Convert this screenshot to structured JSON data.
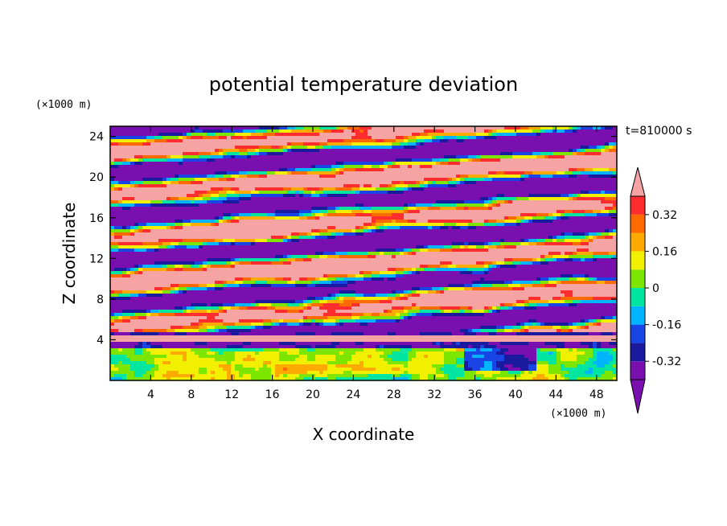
{
  "chart_data": {
    "type": "heatmap",
    "title": "potential temperature deviation",
    "xlabel": "X coordinate",
    "ylabel": "Z coordinate",
    "x_unit": "(×1000 m)",
    "y_unit": "(×1000 m)",
    "time_label": "t=810000 s",
    "xlim": [
      0,
      50
    ],
    "ylim": [
      0,
      25
    ],
    "x_ticks": [
      "4",
      "8",
      "12",
      "16",
      "20",
      "24",
      "28",
      "32",
      "36",
      "40",
      "44",
      "48"
    ],
    "x_tick_values": [
      4,
      8,
      12,
      16,
      20,
      24,
      28,
      32,
      36,
      40,
      44,
      48
    ],
    "y_ticks": [
      "4",
      "8",
      "12",
      "16",
      "20",
      "24"
    ],
    "y_tick_values": [
      4,
      8,
      12,
      16,
      20,
      24
    ],
    "colorbar": {
      "levels": [
        -0.4,
        -0.32,
        -0.24,
        -0.16,
        -0.08,
        0,
        0.08,
        0.16,
        0.24,
        0.32,
        0.4
      ],
      "labels": [
        "0.32",
        "0.16",
        "0",
        "-0.16",
        "-0.32"
      ],
      "label_values": [
        0.32,
        0.16,
        0,
        -0.16,
        -0.32
      ],
      "colors": [
        "#7a0fb0",
        "#1a1a9e",
        "#1a45e6",
        "#00b4ff",
        "#00e6a0",
        "#7de600",
        "#f0f000",
        "#ffaa00",
        "#ff6a00",
        "#ff2d2d",
        "#f5a3a3"
      ],
      "over_color": "#f5a3a3",
      "under_color": "#7a0fb0",
      "extend": "both"
    }
  }
}
